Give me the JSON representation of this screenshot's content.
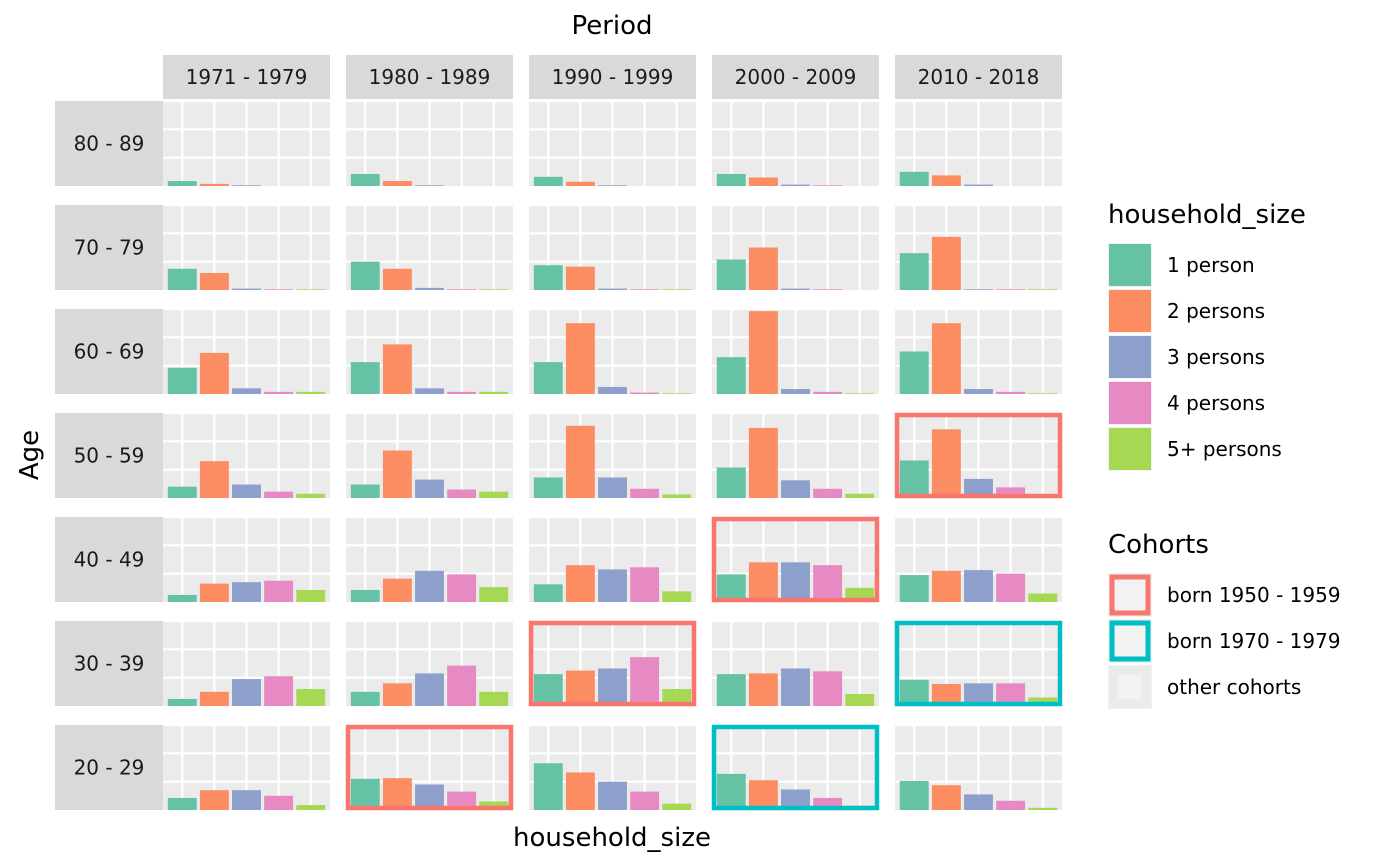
{
  "chart_data": {
    "type": "bar",
    "title": "Period",
    "xlabel": "household_size",
    "ylabel": "Age",
    "facet_columns": [
      "1971 - 1979",
      "1980 - 1989",
      "1990 - 1999",
      "2000 - 2009",
      "2010 - 2018"
    ],
    "facet_rows": [
      "80 - 89",
      "70 - 79",
      "60 - 69",
      "50 - 59",
      "40 - 49",
      "30 - 39",
      "20 - 29"
    ],
    "categories": [
      "1 person",
      "2 persons",
      "3 persons",
      "4 persons",
      "5+ persons"
    ],
    "ylim": [
      0,
      1.2
    ],
    "grid": true,
    "legend_position": "right",
    "legend_household": {
      "title": "household_size",
      "items": [
        {
          "label": "1 person",
          "color": "#66C2A5"
        },
        {
          "label": "2 persons",
          "color": "#FC8D62"
        },
        {
          "label": "3 persons",
          "color": "#8DA0CB"
        },
        {
          "label": "4 persons",
          "color": "#E78AC3"
        },
        {
          "label": "5+ persons",
          "color": "#A6D854"
        }
      ]
    },
    "legend_cohorts": {
      "title": "Cohorts",
      "items": [
        {
          "label": "born 1950 - 1959",
          "color": "#F8766D"
        },
        {
          "label": "born 1970 - 1979",
          "color": "#00BFC4"
        },
        {
          "label": "other cohorts",
          "color": "#EBEBEB"
        }
      ]
    },
    "cohort_highlights": [
      {
        "cohort": "born 1950 - 1959",
        "cells": [
          [
            "20 - 29",
            "1980 - 1989"
          ],
          [
            "30 - 39",
            "1990 - 1999"
          ],
          [
            "40 - 49",
            "2000 - 2009"
          ],
          [
            "50 - 59",
            "2010 - 2018"
          ]
        ]
      },
      {
        "cohort": "born 1970 - 1979",
        "cells": [
          [
            "20 - 29",
            "2000 - 2009"
          ],
          [
            "30 - 39",
            "2010 - 2018"
          ]
        ]
      }
    ],
    "values": [
      [
        [
          0.07,
          0.03,
          0.01,
          0.0,
          0.0
        ],
        [
          0.17,
          0.07,
          0.01,
          0.0,
          0.0
        ],
        [
          0.13,
          0.06,
          0.01,
          0.0,
          0.0
        ],
        [
          0.17,
          0.12,
          0.02,
          0.01,
          0.0
        ],
        [
          0.2,
          0.15,
          0.02,
          0.0,
          0.0
        ]
      ],
      [
        [
          0.3,
          0.24,
          0.02,
          0.01,
          0.01
        ],
        [
          0.4,
          0.3,
          0.03,
          0.01,
          0.01
        ],
        [
          0.35,
          0.33,
          0.02,
          0.01,
          0.01
        ],
        [
          0.43,
          0.6,
          0.02,
          0.01,
          0.0
        ],
        [
          0.52,
          0.75,
          0.01,
          0.01,
          0.01
        ]
      ],
      [
        [
          0.37,
          0.58,
          0.08,
          0.03,
          0.03
        ],
        [
          0.45,
          0.7,
          0.08,
          0.03,
          0.03
        ],
        [
          0.45,
          1.0,
          0.1,
          0.02,
          0.01
        ],
        [
          0.52,
          1.17,
          0.07,
          0.03,
          0.01
        ],
        [
          0.6,
          1.0,
          0.07,
          0.03,
          0.01
        ]
      ],
      [
        [
          0.16,
          0.52,
          0.19,
          0.09,
          0.06
        ],
        [
          0.19,
          0.67,
          0.26,
          0.12,
          0.09
        ],
        [
          0.29,
          1.02,
          0.29,
          0.13,
          0.05
        ],
        [
          0.43,
          0.99,
          0.25,
          0.13,
          0.06
        ],
        [
          0.53,
          0.97,
          0.27,
          0.15,
          0.04
        ]
      ],
      [
        [
          0.1,
          0.26,
          0.28,
          0.3,
          0.17
        ],
        [
          0.17,
          0.33,
          0.44,
          0.39,
          0.21
        ],
        [
          0.25,
          0.52,
          0.46,
          0.49,
          0.15
        ],
        [
          0.39,
          0.56,
          0.56,
          0.52,
          0.2
        ],
        [
          0.38,
          0.44,
          0.45,
          0.4,
          0.12
        ]
      ],
      [
        [
          0.1,
          0.2,
          0.38,
          0.42,
          0.24
        ],
        [
          0.2,
          0.32,
          0.46,
          0.57,
          0.2
        ],
        [
          0.45,
          0.5,
          0.53,
          0.69,
          0.24
        ],
        [
          0.45,
          0.46,
          0.53,
          0.49,
          0.17
        ],
        [
          0.37,
          0.31,
          0.32,
          0.32,
          0.12
        ]
      ],
      [
        [
          0.17,
          0.28,
          0.28,
          0.2,
          0.07
        ],
        [
          0.44,
          0.45,
          0.36,
          0.26,
          0.12
        ],
        [
          0.66,
          0.53,
          0.4,
          0.26,
          0.09
        ],
        [
          0.51,
          0.42,
          0.29,
          0.17,
          0.06
        ],
        [
          0.41,
          0.35,
          0.22,
          0.13,
          0.03
        ]
      ]
    ]
  }
}
